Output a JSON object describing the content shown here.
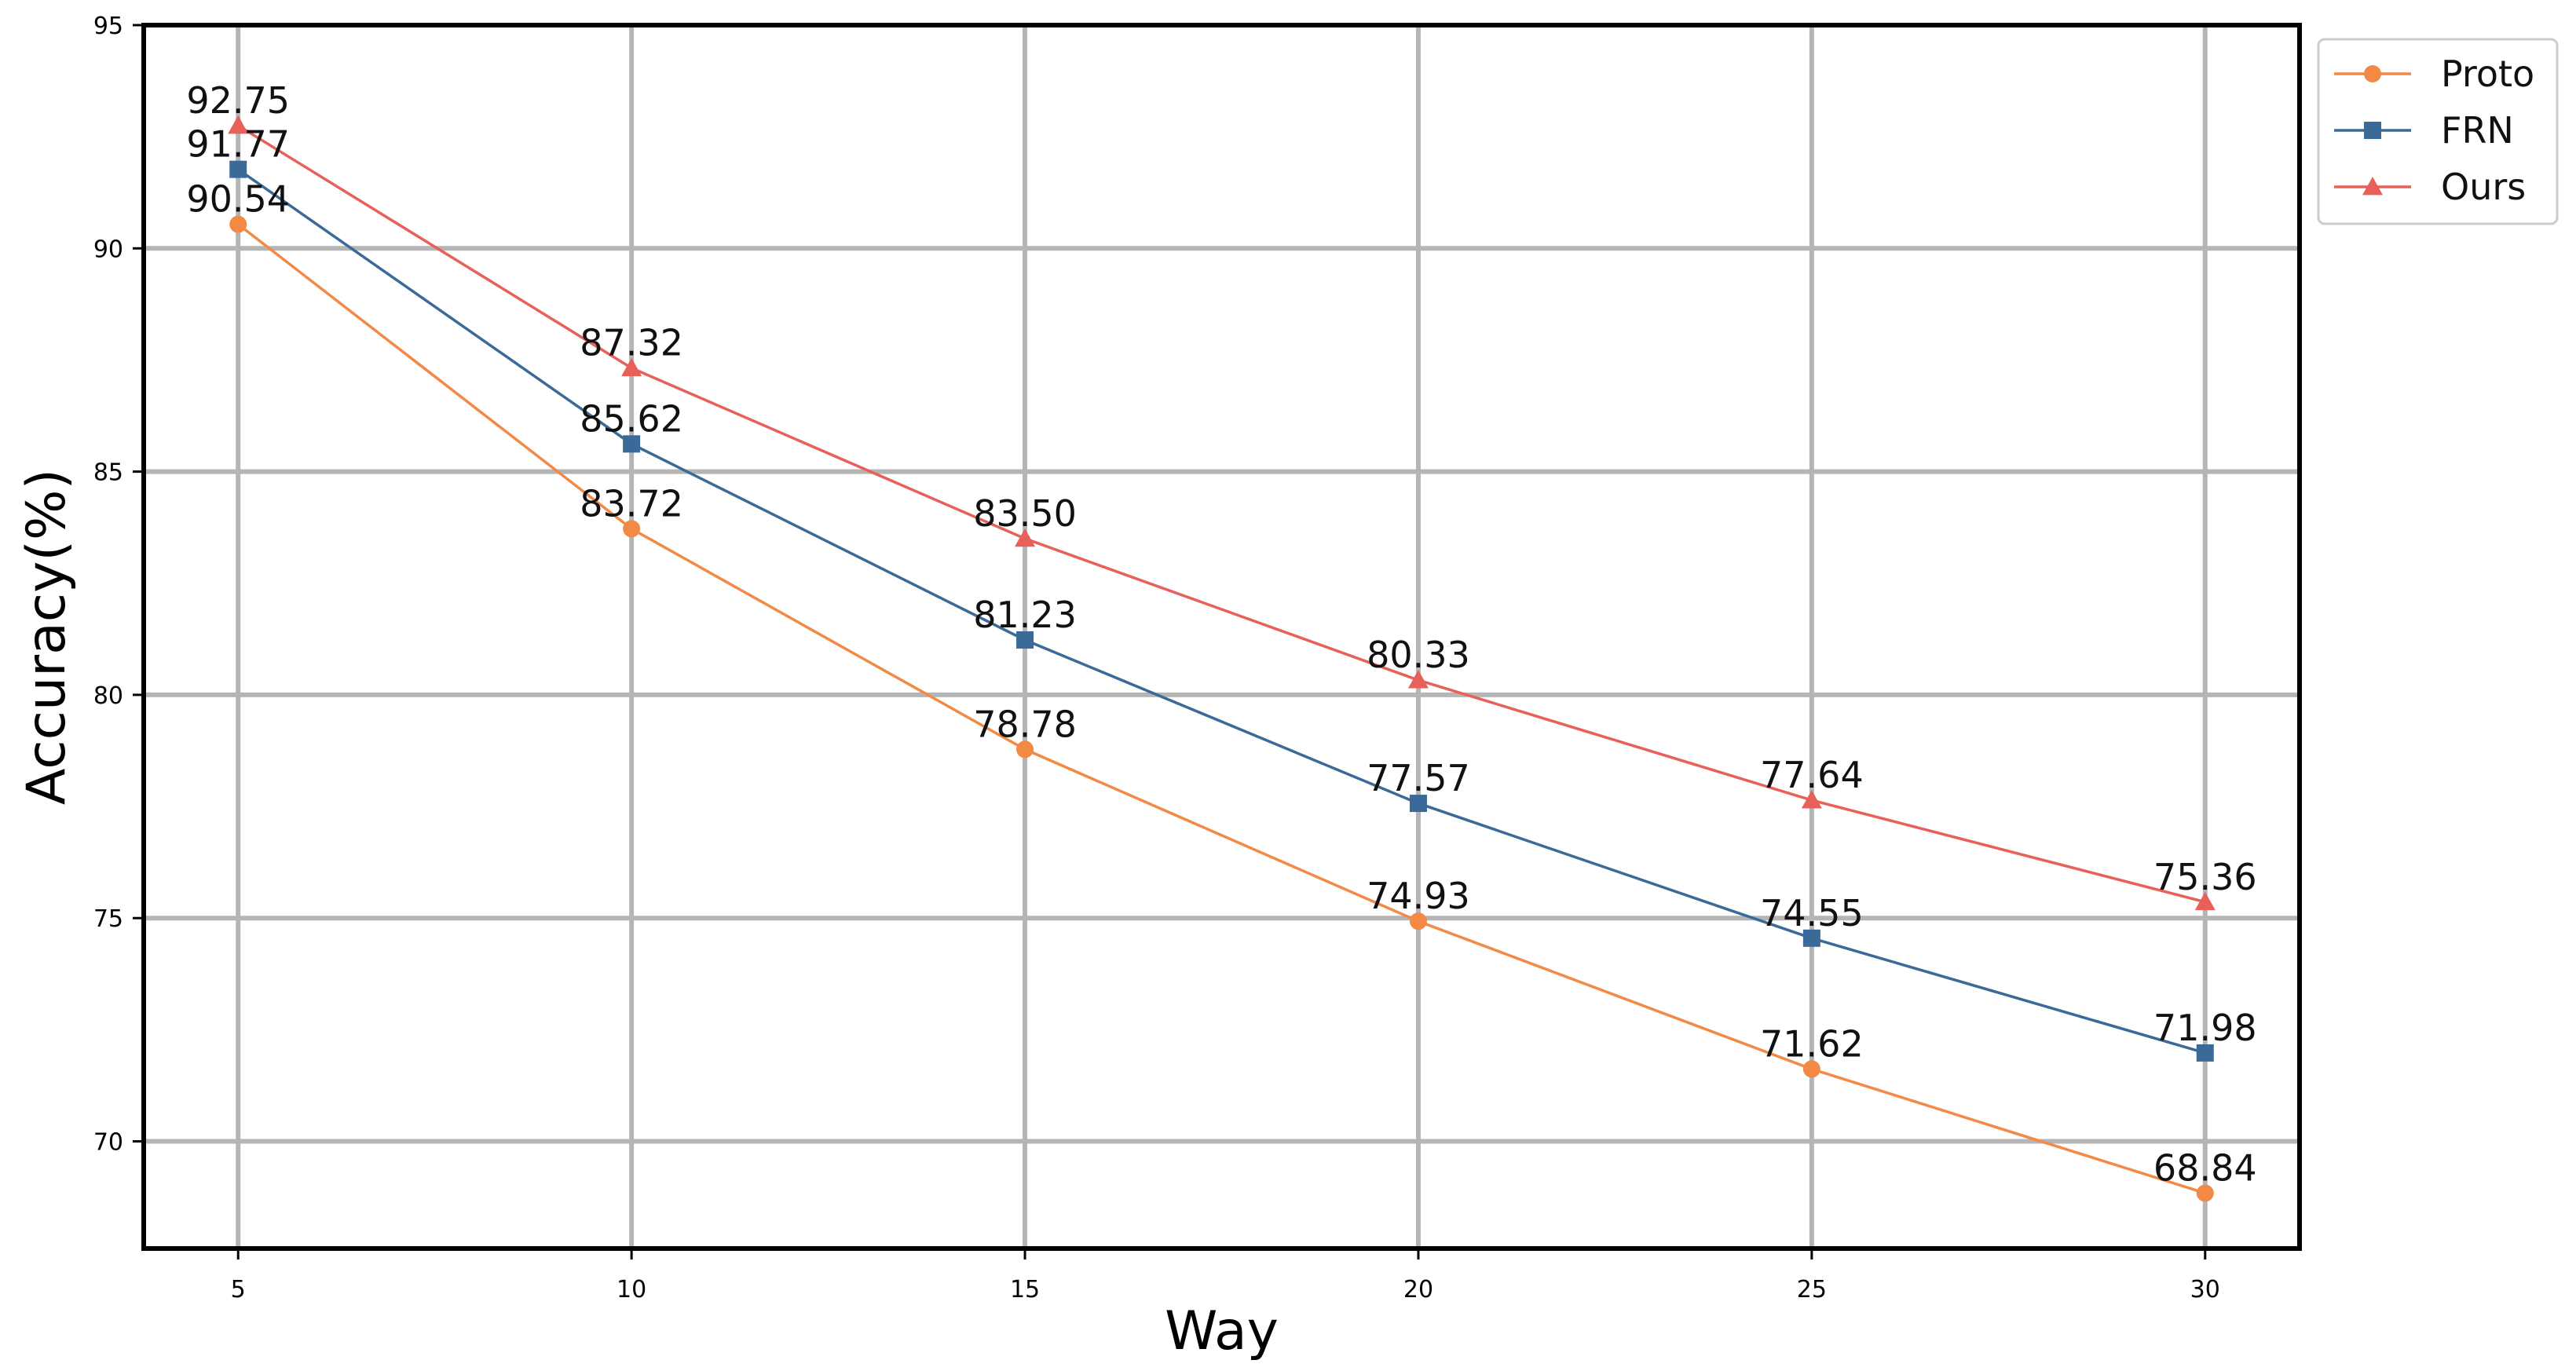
{
  "chart_data": {
    "type": "line",
    "title": "",
    "xlabel": "Way",
    "ylabel": "Accuracy(%)",
    "x": [
      5,
      10,
      15,
      20,
      25,
      30
    ],
    "xlim": [
      3.8,
      31.2
    ],
    "ylim": [
      67.6,
      95
    ],
    "xticks": [
      5,
      10,
      15,
      20,
      25,
      30
    ],
    "yticks": [
      70,
      75,
      80,
      85,
      90,
      95
    ],
    "grid": true,
    "legend_position": "outside-top-right",
    "series": [
      {
        "name": "Proto",
        "marker": "circle",
        "color": "#f28a45",
        "values": [
          90.54,
          83.72,
          78.78,
          74.93,
          71.62,
          68.84
        ],
        "labels": [
          "90.54",
          "83.72",
          "78.78",
          "74.93",
          "71.62",
          "68.84"
        ]
      },
      {
        "name": "FRN",
        "marker": "square",
        "color": "#3b6a99",
        "values": [
          91.77,
          85.62,
          81.23,
          77.57,
          74.55,
          71.98
        ],
        "labels": [
          "91.77",
          "85.62",
          "81.23",
          "77.57",
          "74.55",
          "71.98"
        ]
      },
      {
        "name": "Ours",
        "marker": "triangle",
        "color": "#e8605a",
        "values": [
          92.75,
          87.32,
          83.5,
          80.33,
          77.64,
          75.36
        ],
        "labels": [
          "92.75",
          "87.32",
          "83.50",
          "80.33",
          "77.64",
          "75.36"
        ]
      }
    ]
  }
}
